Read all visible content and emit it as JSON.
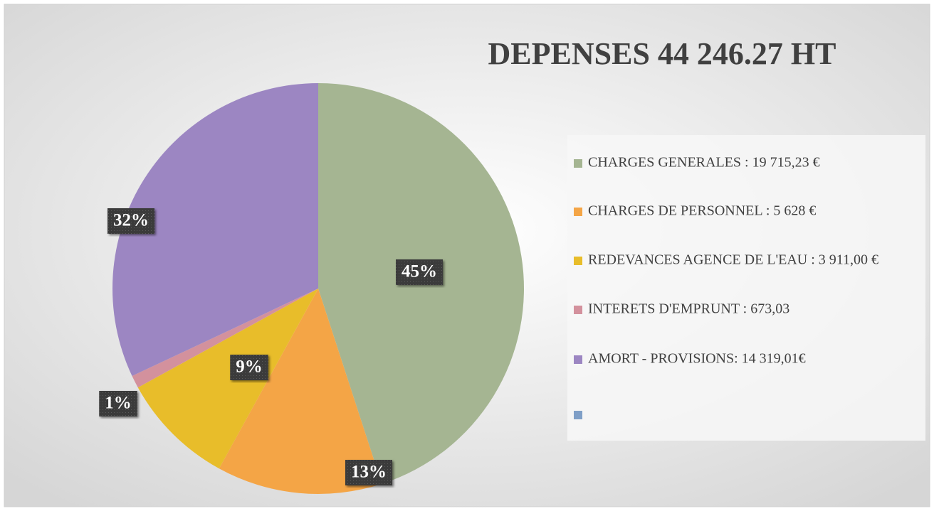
{
  "chart_data": {
    "type": "pie",
    "title": "DEPENSES 44 246.27 HT",
    "categories": [
      "CHARGES GENERALES : 19 715,23 €",
      "CHARGES DE PERSONNEL : 5 628 €",
      "REDEVANCES AGENCE DE L'EAU : 3 911,00 €",
      "INTERETS D'EMPRUNT : 673,03",
      "AMORT - PROVISIONS: 14 319,01€",
      null
    ],
    "values": [
      45,
      13,
      9,
      1,
      32,
      0
    ],
    "value_labels": [
      "45%",
      "13%",
      "9%",
      "1%",
      "32%",
      null
    ],
    "colors": [
      "#a5b592",
      "#f4a546",
      "#e8bd2a",
      "#d3919d",
      "#9c86c2",
      "#7f9fc7"
    ],
    "legend": "right"
  }
}
